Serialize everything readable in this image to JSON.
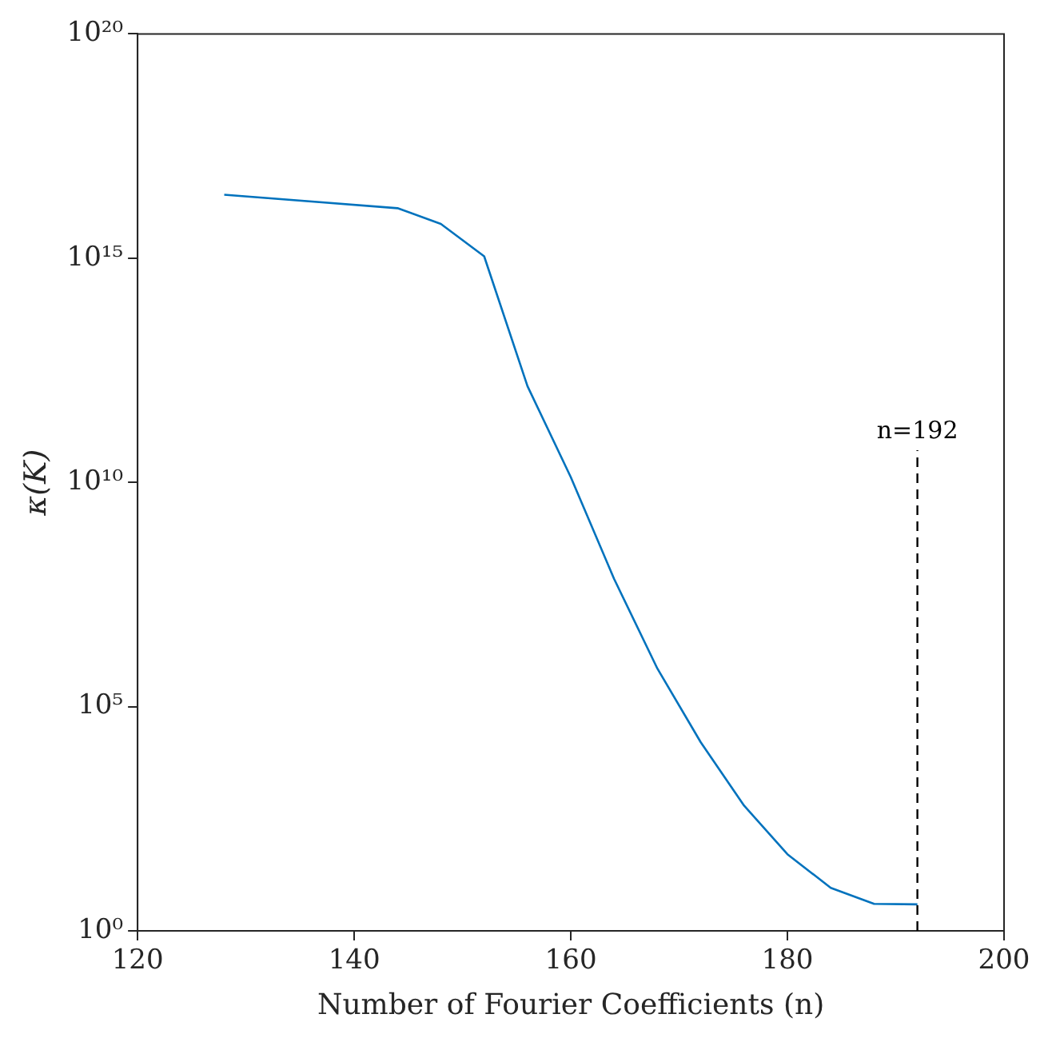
{
  "chart_data": {
    "type": "line",
    "xlabel": "Number of Fourier Coefficients (n)",
    "ylabel": "κ(K)",
    "x": [
      128,
      144,
      148,
      152,
      156,
      160,
      164,
      168,
      172,
      176,
      180,
      184,
      188,
      192
    ],
    "series": [
      {
        "color": "#0072bd",
        "values": [
          2.6e+16,
          1.3e+16,
          5800000000000000.0,
          1100000000000000.0,
          1400000000000.0,
          13000000000.0,
          70000000.0,
          700000.0,
          16000.0,
          620,
          51,
          9.1,
          4,
          3.9
        ]
      }
    ],
    "log": "y",
    "xlim": [
      120,
      200
    ],
    "xticks": [
      120,
      140,
      160,
      180,
      200
    ],
    "ylim": [
      1,
      1e+20
    ],
    "yticks": [
      {
        "value": 1,
        "label": "10⁰"
      },
      {
        "value": 100000,
        "label": "10⁵"
      },
      {
        "value": 10000000000.0,
        "label": "10¹⁰"
      },
      {
        "value": 1000000000000000.0,
        "label": "10¹⁵"
      },
      {
        "value": 1e+20,
        "label": "10²⁰"
      }
    ],
    "ref_lines": [
      {
        "axis": "x",
        "value": 192,
        "label": "n=192",
        "color": "#000000",
        "line_style": "dashed"
      }
    ],
    "grid": false,
    "legend": false,
    "marker": "none",
    "line_style": "solid"
  }
}
